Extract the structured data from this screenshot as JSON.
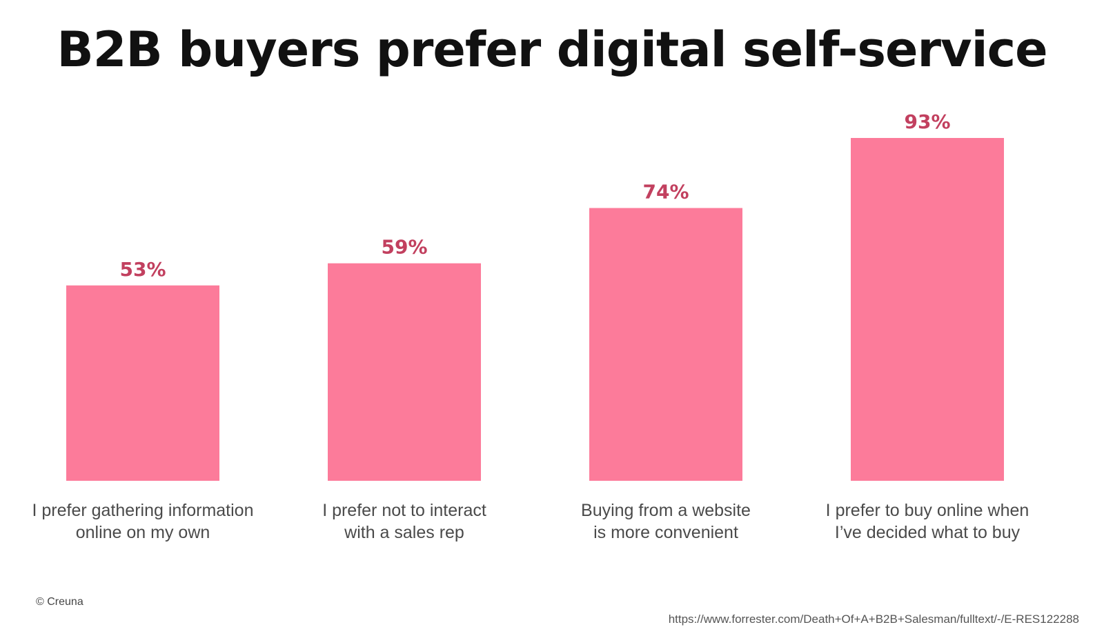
{
  "title": "B2B buyers prefer digital self-service",
  "colors": {
    "bar": "#fc7b9a",
    "value_label": "#c2405f",
    "title": "#111111"
  },
  "chart_data": {
    "type": "bar",
    "title": "B2B buyers prefer digital self-service",
    "categories": [
      [
        "I prefer gathering information",
        "online on my own"
      ],
      [
        "I prefer not to interact",
        "with a sales rep"
      ],
      [
        "Buying from a website",
        "is more convenient"
      ],
      [
        "I prefer to buy online when",
        "I’ve decided what to buy"
      ]
    ],
    "values": [
      53,
      59,
      74,
      93
    ],
    "value_labels": [
      "53%",
      "59%",
      "74%",
      "93%"
    ],
    "ylim": [
      0,
      100
    ],
    "grid": false,
    "legend": "none",
    "xlabel": "",
    "ylabel": ""
  },
  "footer": {
    "copyright": "© Creuna",
    "source": "https://www.forrester.com/Death+Of+A+B2B+Salesman/fulltext/-/E-RES122288"
  }
}
